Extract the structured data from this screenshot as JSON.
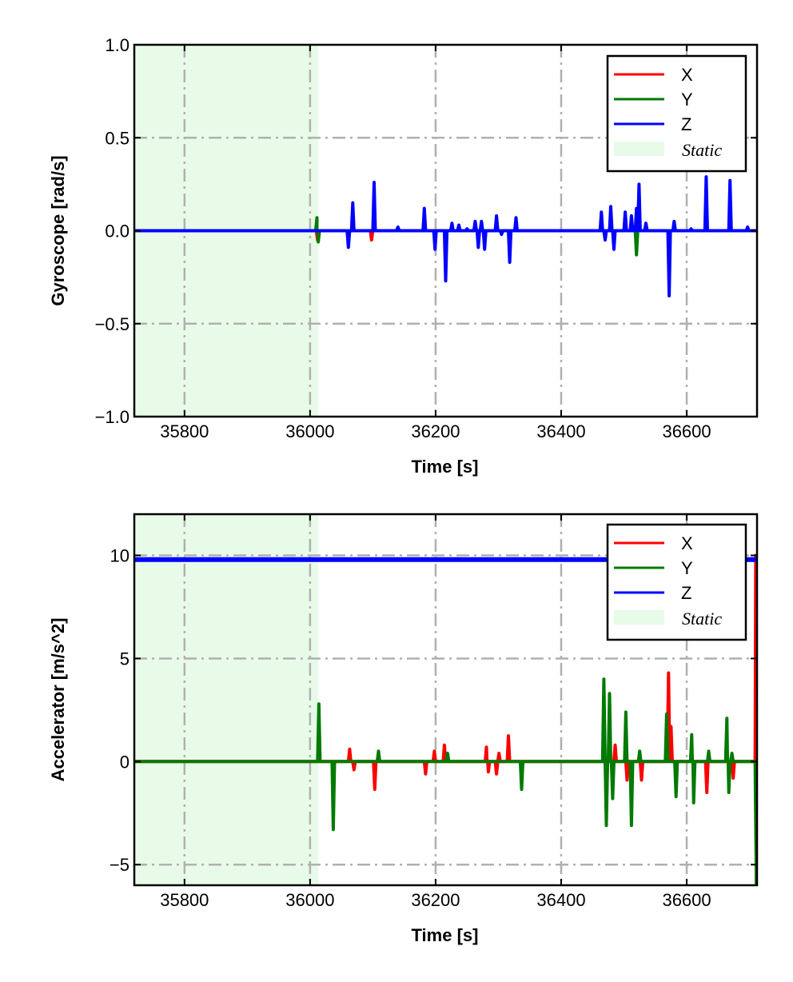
{
  "colors": {
    "X": "#ff0000",
    "Y": "#007a00",
    "Z": "#0000ff",
    "static": "#e8fbe8",
    "grid": "#b0b0b0"
  },
  "chart_data": [
    {
      "type": "line",
      "xlabel": "Time [s]",
      "ylabel": "Gyroscope [rad/s]",
      "xlim": [
        35720,
        36712
      ],
      "ylim": [
        -1.0,
        1.0
      ],
      "xticks": [
        35800,
        36000,
        36200,
        36400,
        36600
      ],
      "yticks": [
        -1.0,
        -0.5,
        0.0,
        0.5,
        1.0
      ],
      "ytick_labels": [
        "−1.0",
        "−0.5",
        "0.0",
        "0.5",
        "1.0"
      ],
      "grid": true,
      "legend_position": "top-right",
      "legend": [
        "X",
        "Y",
        "Z",
        "Static"
      ],
      "static_region": [
        35720,
        36013
      ],
      "series": [
        {
          "name": "X",
          "baseline": 0,
          "spikes": [
            [
              36012,
              -0.05
            ],
            [
              36098,
              -0.05
            ]
          ]
        },
        {
          "name": "Y",
          "baseline": 0,
          "spikes": [
            [
              36011,
              0.07
            ],
            [
              36013,
              -0.06
            ],
            [
              36520,
              -0.13
            ]
          ]
        },
        {
          "name": "Z",
          "baseline": 0,
          "spikes": [
            [
              36061,
              -0.09
            ],
            [
              36068,
              0.15
            ],
            [
              36098,
              0.0
            ],
            [
              36102,
              0.26
            ],
            [
              36140,
              0.02
            ],
            [
              36182,
              0.12
            ],
            [
              36199,
              -0.1
            ],
            [
              36216,
              -0.27
            ],
            [
              36226,
              0.04
            ],
            [
              36237,
              0.03
            ],
            [
              36250,
              0.01
            ],
            [
              36263,
              0.05
            ],
            [
              36268,
              -0.09
            ],
            [
              36273,
              0.05
            ],
            [
              36278,
              -0.1
            ],
            [
              36297,
              0.08
            ],
            [
              36305,
              -0.02
            ],
            [
              36318,
              -0.17
            ],
            [
              36328,
              0.07
            ],
            [
              36464,
              0.1
            ],
            [
              36470,
              -0.05
            ],
            [
              36479,
              0.13
            ],
            [
              36484,
              -0.1
            ],
            [
              36502,
              0.1
            ],
            [
              36512,
              0.08
            ],
            [
              36520,
              0.12
            ],
            [
              36524,
              0.25
            ],
            [
              36535,
              0.04
            ],
            [
              36572,
              -0.35
            ],
            [
              36580,
              0.05
            ],
            [
              36607,
              0.01
            ],
            [
              36631,
              0.29
            ],
            [
              36669,
              0.27
            ],
            [
              36697,
              0.02
            ]
          ]
        }
      ]
    },
    {
      "type": "line",
      "xlabel": "Time [s]",
      "ylabel": "Accelerator [m/s^2]",
      "xlim": [
        35720,
        36712
      ],
      "ylim": [
        -6,
        12
      ],
      "xticks": [
        35800,
        36000,
        36200,
        36400,
        36600
      ],
      "yticks": [
        -5,
        0,
        5,
        10
      ],
      "ytick_labels": [
        "−5",
        "0",
        "5",
        "10"
      ],
      "grid": true,
      "legend_position": "top-right",
      "legend": [
        "X",
        "Y",
        "Z",
        "Static"
      ],
      "static_region": [
        35720,
        36013
      ],
      "series": [
        {
          "name": "X",
          "baseline": 0,
          "spikes": [
            [
              36063,
              0.6
            ],
            [
              36070,
              -0.4
            ],
            [
              36103,
              -1.35
            ],
            [
              36184,
              -0.6
            ],
            [
              36198,
              0.5
            ],
            [
              36214,
              0.8
            ],
            [
              36281,
              0.7
            ],
            [
              36284,
              -0.5
            ],
            [
              36297,
              -0.6
            ],
            [
              36301,
              0.4
            ],
            [
              36316,
              1.25
            ],
            [
              36486,
              0.8
            ],
            [
              36505,
              -0.9
            ],
            [
              36528,
              -0.9
            ],
            [
              36571,
              4.3
            ],
            [
              36575,
              1.7
            ],
            [
              36632,
              -1.5
            ],
            [
              36674,
              -0.8
            ],
            [
              36710,
              10
            ],
            [
              36711,
              -6
            ]
          ]
        },
        {
          "name": "Y",
          "baseline": 0,
          "spikes": [
            [
              36014,
              2.8
            ],
            [
              36037,
              -3.3
            ],
            [
              36109,
              0.5
            ],
            [
              36219,
              0.4
            ],
            [
              36337,
              -1.35
            ],
            [
              36468,
              4.0
            ],
            [
              36472,
              -3.1
            ],
            [
              36477,
              3.3
            ],
            [
              36482,
              -1.8
            ],
            [
              36503,
              2.4
            ],
            [
              36512,
              -3.1
            ],
            [
              36525,
              0.5
            ],
            [
              36568,
              2.3
            ],
            [
              36583,
              -1.7
            ],
            [
              36608,
              1.3
            ],
            [
              36611,
              -2.0
            ],
            [
              36635,
              0.5
            ],
            [
              36664,
              2.1
            ],
            [
              36667,
              -1.5
            ],
            [
              36672,
              0.4
            ],
            [
              36711,
              -6
            ]
          ]
        },
        {
          "name": "Z",
          "baseline": 9.8,
          "spikes": []
        }
      ]
    }
  ]
}
